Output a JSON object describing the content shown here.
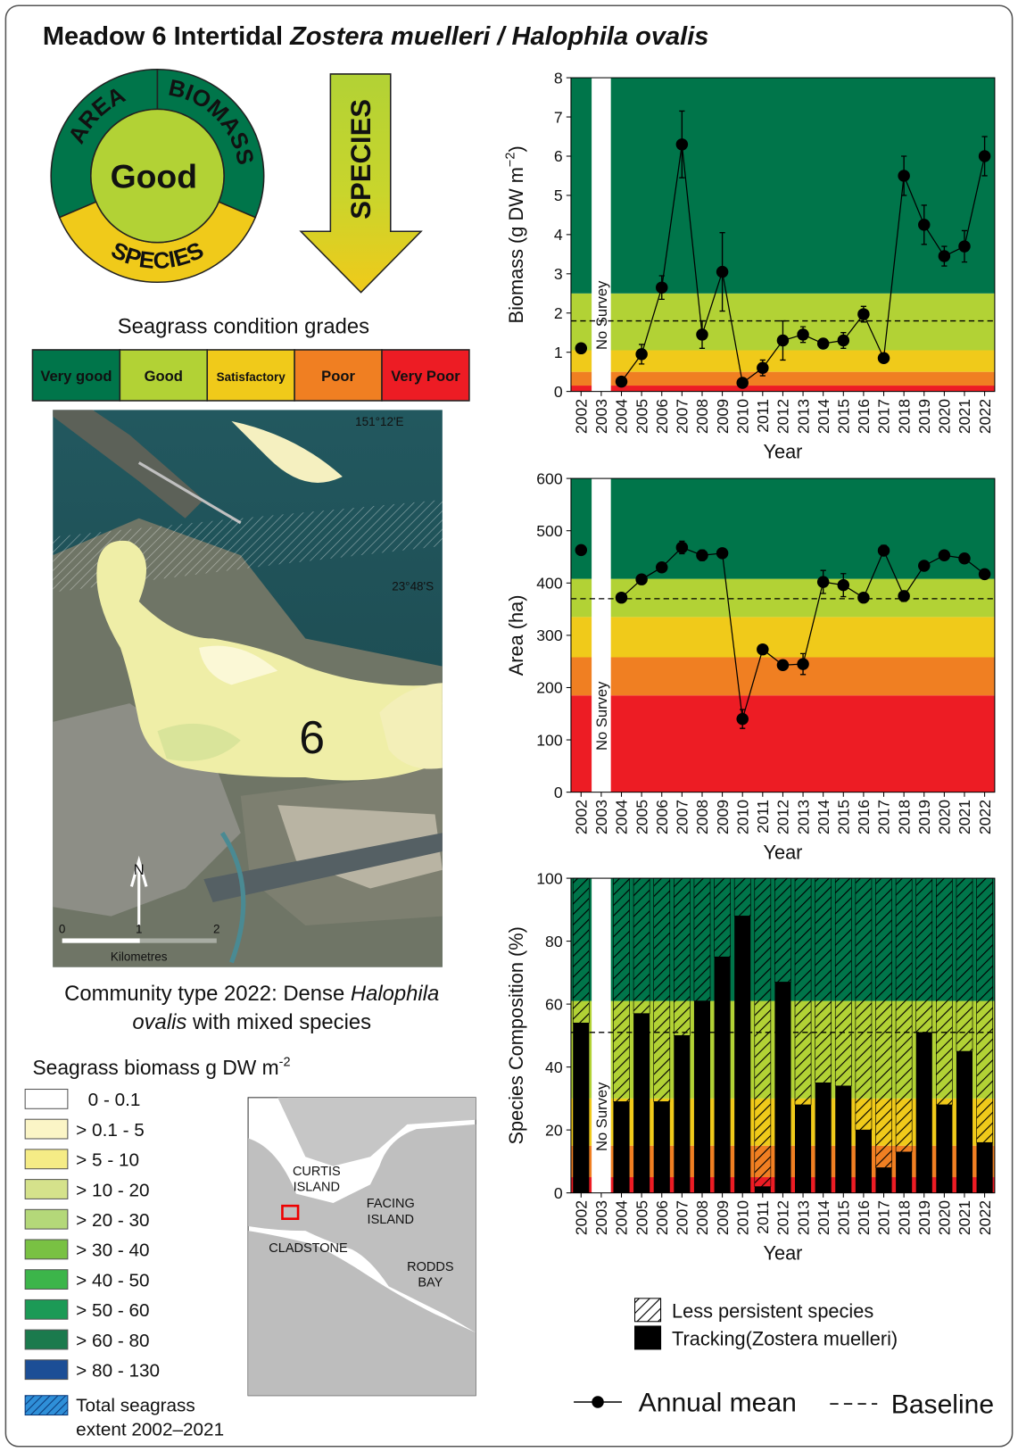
{
  "title": [
    "Meadow 6 Intertidal ",
    "Zostera muelleri / Halophila ovalis"
  ],
  "report_card": {
    "grade": "Good",
    "grade_color": "#b2d235",
    "segments": [
      {
        "label": "AREA",
        "color": "#00754a"
      },
      {
        "label": "BIOMASS",
        "color": "#00754a"
      },
      {
        "label": "SPECIES",
        "color": "#f0ca1a"
      }
    ],
    "arrow_label": "SPECIES"
  },
  "condition_grades": {
    "title": "Seagrass condition grades",
    "grades": [
      {
        "label": "Very good",
        "color": "#00754a"
      },
      {
        "label": "Good",
        "color": "#b2d235"
      },
      {
        "label": "Satisfactory",
        "color": "#f0ca1a"
      },
      {
        "label": "Poor",
        "color": "#f07f22"
      },
      {
        "label": "Very Poor",
        "color": "#ed1c24"
      }
    ]
  },
  "map": {
    "labels": [
      "151°12'E",
      "23°48'S",
      "6",
      "N",
      "0",
      "1",
      "2",
      "Kilometres"
    ],
    "caption": [
      "Community type 2022: Dense ",
      "Halophila",
      "ovalis",
      " with mixed species"
    ]
  },
  "biomass_legend": {
    "title": [
      "Seagrass biomass g DW m",
      "-2"
    ],
    "items": [
      {
        "label": "0 - 0.1",
        "color": "#ffffff"
      },
      {
        "label": "> 0.1 - 5",
        "color": "#fbf5c6"
      },
      {
        "label": "> 5 - 10",
        "color": "#f5ec86"
      },
      {
        "label": "> 10 - 20",
        "color": "#d5e28b"
      },
      {
        "label": "> 20 - 30",
        "color": "#b4d879"
      },
      {
        "label": "> 30 - 40",
        "color": "#79c143"
      },
      {
        "label": "> 40 - 50",
        "color": "#3cb54a"
      },
      {
        "label": "> 50 - 60",
        "color": "#1c9a56"
      },
      {
        "label": "> 60 - 80",
        "color": "#1b7a4d"
      },
      {
        "label": "> 80 - 130",
        "color": "#1c4e96"
      }
    ],
    "extent": [
      "Total seagrass",
      "extent  2002–2021"
    ]
  },
  "inset_map": {
    "labels": [
      [
        "CURTIS",
        "ISLAND"
      ],
      [
        "FACING",
        "ISLAND"
      ],
      [
        "CLADSTONE"
      ],
      [
        "RODDS",
        "BAY"
      ]
    ]
  },
  "legend": {
    "annual_mean": "Annual mean",
    "baseline": "Baseline"
  },
  "chart_data": [
    {
      "type": "line",
      "xlabel": "Year",
      "ylabel": [
        "Biomass (g DW m",
        "−2",
        ")"
      ],
      "categories": [
        "2002",
        "2003",
        "2004",
        "2005",
        "2006",
        "2007",
        "2008",
        "2009",
        "2010",
        "2011",
        "2012",
        "2013",
        "2014",
        "2015",
        "2016",
        "2017",
        "2018",
        "2019",
        "2020",
        "2021",
        "2022"
      ],
      "values": [
        1.1,
        null,
        0.25,
        0.95,
        2.65,
        6.3,
        1.45,
        3.05,
        0.22,
        0.6,
        1.3,
        1.45,
        1.22,
        1.3,
        1.97,
        0.85,
        5.5,
        4.25,
        3.45,
        3.7,
        6.0
      ],
      "errors": [
        0.05,
        null,
        0.05,
        0.25,
        0.3,
        0.85,
        0.35,
        1.0,
        0.05,
        0.2,
        0.5,
        0.2,
        0.05,
        0.2,
        0.2,
        0.05,
        0.5,
        0.5,
        0.25,
        0.4,
        0.5
      ],
      "color": "#000000",
      "ylim": [
        0,
        8
      ],
      "yticks": [
        0,
        1,
        2,
        3,
        4,
        5,
        6,
        7,
        8
      ],
      "baseline": 1.8,
      "bands": [
        {
          "from": 0,
          "to": 0.15,
          "color": "#ed1c24"
        },
        {
          "from": 0.15,
          "to": 0.5,
          "color": "#f07f22"
        },
        {
          "from": 0.5,
          "to": 1.05,
          "color": "#f0ca1a"
        },
        {
          "from": 1.05,
          "to": 2.5,
          "color": "#b2d235"
        },
        {
          "from": 2.5,
          "to": 8,
          "color": "#00754a"
        }
      ],
      "annotation": {
        "text": "No Survey",
        "category": "2003"
      }
    },
    {
      "type": "line",
      "xlabel": "Year",
      "ylabel": "Area (ha)",
      "categories": [
        "2002",
        "2003",
        "2004",
        "2005",
        "2006",
        "2007",
        "2008",
        "2009",
        "2010",
        "2011",
        "2012",
        "2013",
        "2014",
        "2015",
        "2016",
        "2017",
        "2018",
        "2019",
        "2020",
        "2021",
        "2022"
      ],
      "values": [
        463,
        null,
        372,
        407,
        430,
        468,
        453,
        457,
        140,
        273,
        243,
        245,
        402,
        396,
        372,
        462,
        375,
        433,
        453,
        447,
        417
      ],
      "errors": [
        8,
        null,
        8,
        8,
        8,
        12,
        10,
        5,
        18,
        5,
        5,
        20,
        22,
        22,
        8,
        10,
        10,
        5,
        5,
        5,
        5
      ],
      "color": "#000000",
      "ylim": [
        0,
        600
      ],
      "yticks": [
        0,
        100,
        200,
        300,
        400,
        500,
        600
      ],
      "baseline": 370,
      "bands": [
        {
          "from": 0,
          "to": 185,
          "color": "#ed1c24"
        },
        {
          "from": 185,
          "to": 258,
          "color": "#f07f22"
        },
        {
          "from": 258,
          "to": 335,
          "color": "#f0ca1a"
        },
        {
          "from": 335,
          "to": 408,
          "color": "#b2d235"
        },
        {
          "from": 408,
          "to": 600,
          "color": "#00754a"
        }
      ],
      "annotation": {
        "text": "No Survey",
        "category": "2003"
      }
    },
    {
      "type": "bar",
      "stacked": true,
      "xlabel": "Year",
      "ylabel": "Species Composition (%)",
      "categories": [
        "2002",
        "2003",
        "2004",
        "2005",
        "2006",
        "2007",
        "2008",
        "2009",
        "2010",
        "2011",
        "2012",
        "2013",
        "2014",
        "2015",
        "2016",
        "2017",
        "2018",
        "2019",
        "2020",
        "2021",
        "2022"
      ],
      "series": [
        {
          "name": "Tracking(Zostera muelleri)",
          "color": "#000000",
          "values": [
            54,
            null,
            29,
            57,
            29,
            50,
            61,
            75,
            88,
            2,
            67,
            28,
            35,
            34,
            20,
            8,
            13,
            51,
            28,
            45,
            16
          ]
        },
        {
          "name": "Less persistent species",
          "color": "#000000",
          "hatch": true,
          "values": [
            46,
            null,
            71,
            43,
            71,
            50,
            39,
            25,
            12,
            98,
            33,
            72,
            65,
            66,
            80,
            92,
            87,
            49,
            72,
            55,
            84
          ]
        }
      ],
      "ylim": [
        0,
        100
      ],
      "yticks": [
        0,
        20,
        40,
        60,
        80,
        100
      ],
      "baseline": 51,
      "bands": [
        {
          "from": 0,
          "to": 5,
          "color": "#ed1c24"
        },
        {
          "from": 5,
          "to": 15,
          "color": "#f07f22"
        },
        {
          "from": 15,
          "to": 30,
          "color": "#f0ca1a"
        },
        {
          "from": 30,
          "to": 61,
          "color": "#b2d235"
        },
        {
          "from": 61,
          "to": 100,
          "color": "#00754a"
        }
      ],
      "annotation": {
        "text": "No Survey",
        "category": "2003"
      }
    }
  ]
}
